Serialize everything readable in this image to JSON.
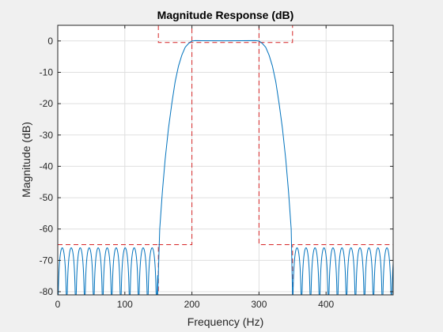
{
  "chart_data": {
    "type": "line",
    "title": "Magnitude Response (dB)",
    "xlabel": "Frequency (Hz)",
    "ylabel": "Magnitude (dB)",
    "xlim": [
      0,
      500
    ],
    "ylim": [
      -81,
      5
    ],
    "xticks": [
      0,
      100,
      200,
      300,
      400
    ],
    "yticks": [
      0,
      -10,
      -20,
      -30,
      -40,
      -50,
      -60,
      -70,
      -80
    ],
    "grid": true,
    "series": [
      {
        "kind": "magnitude-response",
        "color": "#0072bd",
        "passband": [
          200,
          300
        ],
        "stopband_edges": [
          149,
          350
        ],
        "stopband_ripple_peak_db": -66,
        "stopband_ripple_period_hz": 13.4,
        "rolloff_points": [
          [
            149,
            -81
          ],
          [
            152,
            -60
          ],
          [
            156,
            -48
          ],
          [
            160,
            -38
          ],
          [
            165,
            -28
          ],
          [
            170,
            -20
          ],
          [
            175,
            -13
          ],
          [
            180,
            -8
          ],
          [
            185,
            -4.5
          ],
          [
            190,
            -2
          ],
          [
            195,
            -0.8
          ],
          [
            200,
            0
          ],
          [
            205,
            0.1
          ],
          [
            250,
            0.05
          ],
          [
            295,
            0.1
          ],
          [
            300,
            0
          ],
          [
            305,
            -0.8
          ],
          [
            310,
            -2
          ],
          [
            315,
            -4.5
          ],
          [
            320,
            -8
          ],
          [
            325,
            -13
          ],
          [
            330,
            -20
          ],
          [
            335,
            -28
          ],
          [
            340,
            -38
          ],
          [
            344,
            -48
          ],
          [
            348,
            -60
          ],
          [
            350,
            -81
          ]
        ]
      },
      {
        "kind": "design-mask",
        "color": "#d62728",
        "dashed": true,
        "segments": [
          [
            [
              0,
              -65
            ],
            [
              150,
              -65
            ],
            [
              150,
              -81
            ]
          ],
          [
            [
              150,
              5
            ],
            [
              150,
              -0.5
            ],
            [
              350,
              -0.5
            ],
            [
              350,
              5
            ]
          ],
          [
            [
              150,
              -65
            ],
            [
              200,
              -65
            ],
            [
              200,
              5
            ]
          ],
          [
            [
              300,
              5
            ],
            [
              300,
              -65
            ],
            [
              350,
              -65
            ]
          ],
          [
            [
              350,
              -81
            ],
            [
              350,
              -65
            ],
            [
              500,
              -65
            ]
          ]
        ]
      }
    ]
  }
}
